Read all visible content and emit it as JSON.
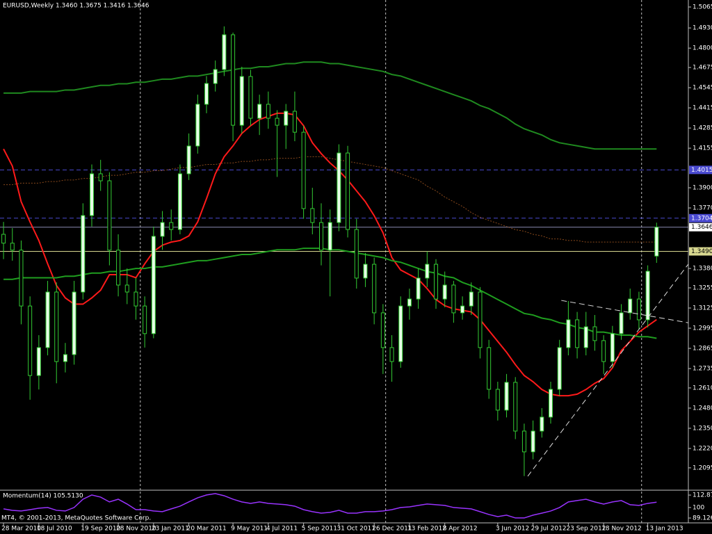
{
  "chart_data": {
    "type": "candlestick",
    "title": "EURUSD,Weekly  1.3460 1.3675 1.3416 1.3646",
    "footer": "MT4, © 2001-2013, MetaQuotes Software Corp.",
    "up_color": "#e6ffe6",
    "down_color": "#000000",
    "wick_color": "#33cc33",
    "xlim": [
      -0.4,
      77.6
    ],
    "ylim": [
      1.1951,
      1.511
    ],
    "xticks": [
      {
        "value": 0,
        "label": "28 Mar 2010"
      },
      {
        "value": 4,
        "label": "18 Jul 2010"
      },
      {
        "value": 9,
        "label": "19 Sep 2010"
      },
      {
        "value": 13,
        "label": "28 Nov 2010"
      },
      {
        "value": 17,
        "label": "23 Jan 2011"
      },
      {
        "value": 21,
        "label": "20 Mar 2011"
      },
      {
        "value": 26,
        "label": "9 May 2011"
      },
      {
        "value": 30,
        "label": "4 Jul 2011"
      },
      {
        "value": 34,
        "label": "5 Sep 2011"
      },
      {
        "value": 38,
        "label": "31 Oct 2011"
      },
      {
        "value": 42,
        "label": "26 Dec 2011"
      },
      {
        "value": 46,
        "label": "13 Feb 2012"
      },
      {
        "value": 50,
        "label": "8 Apr 2012"
      },
      {
        "value": 56,
        "label": "3 Jun 2012"
      },
      {
        "value": 60,
        "label": "29 Jul 2012"
      },
      {
        "value": 64,
        "label": "23 Sep 2012"
      },
      {
        "value": 68,
        "label": "18 Nov 2012"
      },
      {
        "value": 73,
        "label": "13 Jan 2013"
      }
    ],
    "yticks": [
      1.5065,
      {
        "value": 1.493,
        "label": "1.4930"
      },
      {
        "value": 1.48,
        "label": "1.4800"
      },
      1.4675,
      1.4545,
      1.4415,
      1.4285,
      1.4155,
      {
        "value": 1.39,
        "label": "1.3900"
      },
      {
        "value": 1.377,
        "label": "1.3770"
      },
      {
        "value": 1.338,
        "label": "1.3380"
      },
      1.3255,
      1.3125,
      1.2995,
      1.2865,
      1.2735,
      {
        "value": 1.261,
        "label": "1.2610"
      },
      {
        "value": 1.248,
        "label": "1.2480"
      },
      {
        "value": 1.235,
        "label": "1.2350"
      },
      {
        "value": 1.222,
        "label": "1.2220"
      },
      1.2095
    ],
    "separators": [
      15.5,
      43.3,
      72.3
    ],
    "ohlc": [
      [
        1.36,
        1.368,
        1.344,
        1.3543
      ],
      [
        1.3543,
        1.364,
        1.343,
        1.3498
      ],
      [
        1.3498,
        1.356,
        1.302,
        1.3138
      ],
      [
        1.3138,
        1.32,
        1.2534,
        1.269
      ],
      [
        1.269,
        1.295,
        1.26,
        1.287
      ],
      [
        1.287,
        1.33,
        1.282,
        1.3228
      ],
      [
        1.3228,
        1.329,
        1.264,
        1.278
      ],
      [
        1.278,
        1.29,
        1.271,
        1.2825
      ],
      [
        1.2825,
        1.33,
        1.276,
        1.3228
      ],
      [
        1.3228,
        1.38,
        1.318,
        1.3721
      ],
      [
        1.3721,
        1.405,
        1.365,
        1.399
      ],
      [
        1.399,
        1.408,
        1.388,
        1.3945
      ],
      [
        1.3945,
        1.4,
        1.34,
        1.3498
      ],
      [
        1.3498,
        1.36,
        1.32,
        1.3273
      ],
      [
        1.3273,
        1.338,
        1.315,
        1.3228
      ],
      [
        1.3228,
        1.332,
        1.305,
        1.3138
      ],
      [
        1.3138,
        1.32,
        1.287,
        1.296
      ],
      [
        1.296,
        1.365,
        1.293,
        1.3587
      ],
      [
        1.3587,
        1.375,
        1.35,
        1.3676
      ],
      [
        1.3676,
        1.376,
        1.356,
        1.3631
      ],
      [
        1.3631,
        1.405,
        1.36,
        1.399
      ],
      [
        1.399,
        1.425,
        1.395,
        1.4169
      ],
      [
        1.4169,
        1.45,
        1.412,
        1.4438
      ],
      [
        1.4438,
        1.462,
        1.438,
        1.4572
      ],
      [
        1.4572,
        1.472,
        1.452,
        1.4662
      ],
      [
        1.4662,
        1.494,
        1.462,
        1.4886
      ],
      [
        1.4886,
        1.49,
        1.42,
        1.4303
      ],
      [
        1.4303,
        1.468,
        1.425,
        1.4617
      ],
      [
        1.4617,
        1.466,
        1.43,
        1.4348
      ],
      [
        1.4348,
        1.45,
        1.424,
        1.4438
      ],
      [
        1.4438,
        1.452,
        1.428,
        1.4348
      ],
      [
        1.4348,
        1.44,
        1.397,
        1.4303
      ],
      [
        1.4303,
        1.444,
        1.415,
        1.4393
      ],
      [
        1.4393,
        1.452,
        1.42,
        1.4258
      ],
      [
        1.4258,
        1.43,
        1.37,
        1.3766
      ],
      [
        1.3766,
        1.39,
        1.36,
        1.3676
      ],
      [
        1.3676,
        1.38,
        1.34,
        1.3498
      ],
      [
        1.3498,
        1.376,
        1.32,
        1.3676
      ],
      [
        1.3676,
        1.418,
        1.362,
        1.4124
      ],
      [
        1.4124,
        1.417,
        1.358,
        1.3631
      ],
      [
        1.3631,
        1.37,
        1.325,
        1.3318
      ],
      [
        1.3318,
        1.348,
        1.326,
        1.3407
      ],
      [
        1.3407,
        1.345,
        1.302,
        1.3094
      ],
      [
        1.3094,
        1.315,
        1.27,
        1.287
      ],
      [
        1.287,
        1.295,
        1.265,
        1.278
      ],
      [
        1.278,
        1.32,
        1.274,
        1.3138
      ],
      [
        1.3138,
        1.325,
        1.305,
        1.3183
      ],
      [
        1.3183,
        1.338,
        1.312,
        1.3318
      ],
      [
        1.3318,
        1.349,
        1.326,
        1.3407
      ],
      [
        1.3407,
        1.344,
        1.312,
        1.3183
      ],
      [
        1.3183,
        1.336,
        1.313,
        1.3273
      ],
      [
        1.3273,
        1.33,
        1.303,
        1.3094
      ],
      [
        1.3094,
        1.32,
        1.305,
        1.3138
      ],
      [
        1.3138,
        1.329,
        1.308,
        1.3228
      ],
      [
        1.3228,
        1.326,
        1.28,
        1.287
      ],
      [
        1.287,
        1.292,
        1.254,
        1.2601
      ],
      [
        1.2601,
        1.265,
        1.24,
        1.2467
      ],
      [
        1.2467,
        1.27,
        1.242,
        1.2646
      ],
      [
        1.2646,
        1.268,
        1.228,
        1.2332
      ],
      [
        1.2332,
        1.238,
        1.2042,
        1.2198
      ],
      [
        1.2198,
        1.24,
        1.215,
        1.2332
      ],
      [
        1.2332,
        1.248,
        1.229,
        1.2422
      ],
      [
        1.2422,
        1.265,
        1.238,
        1.2601
      ],
      [
        1.2601,
        1.292,
        1.256,
        1.287
      ],
      [
        1.287,
        1.317,
        1.282,
        1.3049
      ],
      [
        1.3049,
        1.31,
        1.28,
        1.287
      ],
      [
        1.287,
        1.31,
        1.282,
        1.3004
      ],
      [
        1.3004,
        1.308,
        1.285,
        1.2915
      ],
      [
        1.2915,
        1.295,
        1.27,
        1.278
      ],
      [
        1.278,
        1.301,
        1.274,
        1.296
      ],
      [
        1.296,
        1.315,
        1.292,
        1.3094
      ],
      [
        1.3094,
        1.325,
        1.305,
        1.3183
      ],
      [
        1.3183,
        1.323,
        1.299,
        1.3049
      ],
      [
        1.3049,
        1.34,
        1.3,
        1.3362
      ],
      [
        1.346,
        1.3675,
        1.3416,
        1.3646
      ]
    ],
    "lines": [
      {
        "color": "#ff1a1a",
        "width": 2,
        "dash": false,
        "values": [
          1.415,
          1.404,
          1.381,
          1.368,
          1.356,
          1.341,
          1.327,
          1.319,
          1.315,
          1.315,
          1.319,
          1.324,
          1.334,
          1.334,
          1.334,
          1.332,
          1.341,
          1.349,
          1.353,
          1.355,
          1.356,
          1.359,
          1.368,
          1.383,
          1.399,
          1.41,
          1.417,
          1.425,
          1.43,
          1.434,
          1.436,
          1.438,
          1.438,
          1.437,
          1.43,
          1.419,
          1.412,
          1.406,
          1.401,
          1.395,
          1.388,
          1.381,
          1.372,
          1.361,
          1.345,
          1.337,
          1.334,
          1.331,
          1.325,
          1.318,
          1.314,
          1.312,
          1.311,
          1.31,
          1.305,
          1.298,
          1.291,
          1.284,
          1.276,
          1.269,
          1.265,
          1.26,
          1.257,
          1.256,
          1.256,
          1.257,
          1.26,
          1.264,
          1.267,
          1.274,
          1.285,
          1.291,
          1.297,
          1.301,
          1.305
        ]
      },
      {
        "color": "#1f9e1f",
        "width": 2,
        "dash": false,
        "values": [
          1.331,
          1.331,
          1.332,
          1.332,
          1.332,
          1.332,
          1.332,
          1.333,
          1.333,
          1.334,
          1.335,
          1.335,
          1.336,
          1.336,
          1.337,
          1.338,
          1.338,
          1.339,
          1.339,
          1.34,
          1.341,
          1.342,
          1.343,
          1.343,
          1.344,
          1.345,
          1.346,
          1.347,
          1.347,
          1.348,
          1.349,
          1.35,
          1.35,
          1.35,
          1.351,
          1.351,
          1.351,
          1.35,
          1.35,
          1.349,
          1.348,
          1.347,
          1.346,
          1.345,
          1.343,
          1.342,
          1.34,
          1.338,
          1.336,
          1.335,
          1.333,
          1.332,
          1.329,
          1.327,
          1.324,
          1.321,
          1.318,
          1.315,
          1.312,
          1.309,
          1.308,
          1.306,
          1.305,
          1.303,
          1.302,
          1.3,
          1.299,
          1.297,
          1.297,
          1.296,
          1.295,
          1.295,
          1.294,
          1.294,
          1.293
        ]
      },
      {
        "color": "#1f8a1f",
        "width": 2,
        "dash": false,
        "values": [
          1.451,
          1.451,
          1.451,
          1.452,
          1.452,
          1.452,
          1.452,
          1.453,
          1.453,
          1.454,
          1.455,
          1.456,
          1.456,
          1.457,
          1.457,
          1.458,
          1.458,
          1.459,
          1.46,
          1.46,
          1.461,
          1.462,
          1.462,
          1.463,
          1.464,
          1.465,
          1.466,
          1.467,
          1.467,
          1.468,
          1.468,
          1.469,
          1.47,
          1.47,
          1.471,
          1.471,
          1.471,
          1.47,
          1.47,
          1.469,
          1.468,
          1.467,
          1.466,
          1.465,
          1.463,
          1.462,
          1.46,
          1.458,
          1.456,
          1.454,
          1.452,
          1.45,
          1.448,
          1.446,
          1.443,
          1.441,
          1.438,
          1.435,
          1.431,
          1.428,
          1.426,
          1.424,
          1.421,
          1.419,
          1.418,
          1.417,
          1.416,
          1.415,
          1.415,
          1.415,
          1.415,
          1.415,
          1.415,
          1.415,
          1.415
        ]
      },
      {
        "color": "#8b4a1c",
        "width": 1,
        "dash": true,
        "values": [
          1.392,
          1.392,
          1.393,
          1.393,
          1.393,
          1.394,
          1.394,
          1.395,
          1.395,
          1.396,
          1.396,
          1.397,
          1.398,
          1.398,
          1.399,
          1.4,
          1.4,
          1.401,
          1.401,
          1.402,
          1.403,
          1.403,
          1.404,
          1.405,
          1.405,
          1.406,
          1.406,
          1.407,
          1.407,
          1.408,
          1.408,
          1.409,
          1.409,
          1.409,
          1.41,
          1.41,
          1.41,
          1.409,
          1.408,
          1.407,
          1.406,
          1.405,
          1.404,
          1.403,
          1.401,
          1.399,
          1.397,
          1.395,
          1.391,
          1.388,
          1.384,
          1.381,
          1.378,
          1.374,
          1.371,
          1.369,
          1.367,
          1.365,
          1.363,
          1.362,
          1.36,
          1.359,
          1.357,
          1.357,
          1.356,
          1.356,
          1.355,
          1.355,
          1.355,
          1.355,
          1.355,
          1.355,
          1.355,
          1.355,
          1.355
        ]
      }
    ],
    "hlines": [
      {
        "value": 1.4015,
        "color": "#4a4ad0",
        "dash": true,
        "label_bg": "#4a4ad0",
        "label_color": "#ffffff"
      },
      {
        "value": 1.3704,
        "color": "#4a4ad0",
        "dash": true,
        "label_bg": "#4a4ad0",
        "label_color": "#ffffff"
      },
      {
        "value": 1.3646,
        "color": "#8a8ab0",
        "dash": false,
        "label_bg": "#ffffff",
        "label_color": "#000000"
      },
      {
        "value": 1.349,
        "label": "1.3490",
        "color": "#d8d890",
        "dash": false,
        "label_bg": "#d8d890",
        "label_color": "#000000"
      }
    ],
    "trendlines": [
      {
        "x": [
          59.4,
          77.6
        ],
        "y": [
          1.2041,
          1.3408
        ],
        "color": "#dddddd"
      },
      {
        "x": [
          63.2,
          80.2
        ],
        "y": [
          1.3174,
          1.3004
        ],
        "color": "#dddddd"
      }
    ],
    "momentum": {
      "title": "Momentum(14) 105.5130",
      "color": "#9933ff",
      "ylim": [
        84.1,
        116.5
      ],
      "yticks": [
        112.8791,
        100,
        89.1264
      ],
      "values": [
        98.6,
        97.1,
        96.4,
        97.8,
        99.3,
        100,
        97.1,
        96.4,
        100,
        108.6,
        113,
        110.8,
        105.8,
        108.6,
        103.6,
        97.8,
        97.8,
        96.4,
        95.7,
        98.6,
        101.4,
        105.8,
        110.1,
        113,
        114.4,
        112.2,
        108.6,
        105.8,
        104.3,
        105.8,
        104.3,
        103.6,
        102.9,
        101.4,
        97.8,
        95.7,
        94.2,
        95,
        97.1,
        94.2,
        94.2,
        95.7,
        95.7,
        96.4,
        97.8,
        100,
        100.7,
        102.2,
        103.6,
        102.9,
        102.2,
        100,
        99.3,
        98.6,
        95.7,
        92.8,
        90.6,
        92.1,
        89.2,
        89.2,
        92.1,
        94.2,
        96.4,
        100,
        105.8,
        107.2,
        108.6,
        105.8,
        103.6,
        105.8,
        107.2,
        102.9,
        102.2,
        104.3,
        105.513
      ]
    }
  }
}
